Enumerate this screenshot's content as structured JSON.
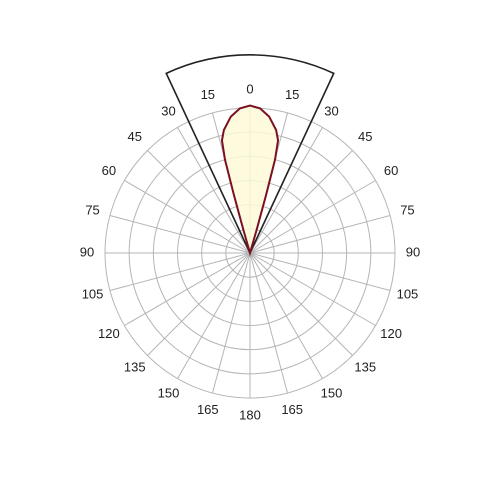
{
  "chart_data": {
    "type": "polar",
    "angle_ticks": [
      0,
      15,
      30,
      45,
      60,
      75,
      90,
      105,
      120,
      135,
      150,
      165,
      180
    ],
    "rlim": [
      0,
      6
    ],
    "rticks": [
      1,
      2,
      3,
      4,
      5,
      6
    ],
    "grid": true,
    "beam": {
      "angles": [
        -25,
        25
      ],
      "radius": 8.2,
      "color": "#222222"
    },
    "series": [
      {
        "color": "#7a1020",
        "fill": "#fdf9d8",
        "angles": [
          -17,
          -16,
          -15.5,
          -15,
          -14,
          -12,
          -8,
          -4,
          0,
          4,
          8,
          12,
          14,
          15,
          15.5,
          16,
          17
        ],
        "values": [
          0,
          1.0,
          2.5,
          4.0,
          4.8,
          5.2,
          5.7,
          6.0,
          6.1,
          6.0,
          5.7,
          5.2,
          4.8,
          4.0,
          2.5,
          1.0,
          0
        ]
      }
    ]
  }
}
